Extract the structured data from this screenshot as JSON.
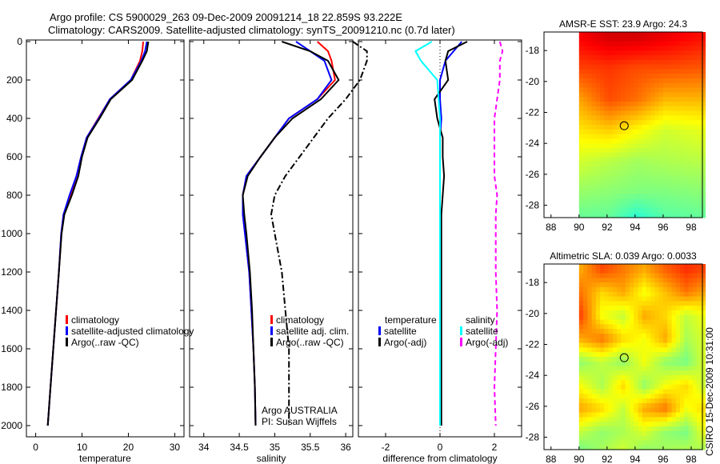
{
  "title": {
    "line1": "Argo profile: CS 5900029_263 09-Dec-2009 20091214_18 22.859S 93.222E",
    "line2": "Climatology: CARS2009. Satellite-adjusted climatology: synTS_20091210.nc (0.7d later)"
  },
  "credit": "CSIRO 15-Dec-2009 10:31:00",
  "colors": {
    "clim": "#ff0000",
    "sat": "#0000ff",
    "argo": "#000000",
    "salsat": "#00ffff",
    "salargo": "#ff00ff"
  },
  "chart_data": [
    {
      "type": "line",
      "name": "temperature",
      "xlabel": "temperature",
      "xlim": [
        -2,
        32
      ],
      "ylim": [
        2050,
        0
      ],
      "xticks": [
        "0",
        "10",
        "20",
        "30"
      ],
      "xtickvals": [
        0,
        10,
        20,
        30
      ],
      "yticks": [
        "0",
        "200",
        "400",
        "600",
        "800",
        "1000",
        "1200",
        "1400",
        "1600",
        "1800",
        "2000"
      ],
      "depth": [
        0,
        50,
        100,
        200,
        300,
        400,
        500,
        600,
        700,
        800,
        900,
        1000,
        1200,
        1400,
        1600,
        1800,
        2000
      ],
      "series": [
        {
          "name": "climatology",
          "color": "#ff0000",
          "values": [
            23.2,
            23.0,
            22.5,
            20.5,
            16.0,
            13.5,
            11.0,
            9.8,
            8.8,
            7.5,
            6.0,
            5.5,
            5.0,
            4.4,
            3.8,
            3.2,
            2.6
          ]
        },
        {
          "name": "satellite-adjusted climatology",
          "color": "#0000ff",
          "values": [
            24.0,
            23.6,
            22.8,
            20.5,
            16.0,
            13.6,
            11.0,
            9.8,
            8.8,
            7.3,
            6.0,
            5.5,
            5.0,
            4.4,
            3.8,
            3.2,
            2.6
          ]
        },
        {
          "name": "Argo(..raw -QC)",
          "color": "#000000",
          "values": [
            24.3,
            24.0,
            23.0,
            20.8,
            16.2,
            13.8,
            11.2,
            10.0,
            9.2,
            7.8,
            6.2,
            5.6,
            5.0,
            4.4,
            3.8,
            3.2,
            2.6
          ]
        }
      ],
      "legend": [
        "climatology",
        "satellite-adjusted climatology",
        "Argo(..raw -QC)"
      ]
    },
    {
      "type": "line",
      "name": "salinity",
      "xlabel": "salinity",
      "xlim": [
        33.8,
        36.1
      ],
      "ylim": [
        2050,
        0
      ],
      "xticks": [
        "34",
        "34.5",
        "35",
        "35.5",
        "36"
      ],
      "xtickvals": [
        34,
        34.5,
        35,
        35.5,
        36
      ],
      "depth": [
        0,
        50,
        100,
        200,
        300,
        400,
        500,
        600,
        700,
        800,
        900,
        1000,
        1200,
        1400,
        1600,
        1800,
        2000
      ],
      "series": [
        {
          "name": "climatology",
          "color": "#ff0000",
          "values": [
            35.6,
            35.75,
            35.8,
            35.85,
            35.6,
            35.2,
            35.0,
            34.8,
            34.6,
            34.55,
            34.55,
            34.58,
            34.64,
            34.67,
            34.7,
            34.72,
            34.73
          ]
        },
        {
          "name": "satellite adj. clim.",
          "color": "#0000ff",
          "values": [
            35.3,
            35.5,
            35.7,
            35.8,
            35.6,
            35.2,
            35.0,
            34.8,
            34.6,
            34.55,
            34.55,
            34.58,
            34.64,
            34.67,
            34.7,
            34.72,
            34.73
          ]
        },
        {
          "name": "Argo(..raw -QC)",
          "color": "#000000",
          "values": [
            35.1,
            35.5,
            35.75,
            35.9,
            35.65,
            35.25,
            35.0,
            34.8,
            34.62,
            34.55,
            34.57,
            34.6,
            34.65,
            34.68,
            34.7,
            34.72,
            34.73
          ]
        },
        {
          "name": "Argo raw",
          "color": "#000000",
          "dash": true,
          "values": [
            36.1,
            36.3,
            36.3,
            36.2,
            36.0,
            35.75,
            35.55,
            35.35,
            35.15,
            35.0,
            34.95,
            35.0,
            35.1,
            35.15,
            35.2,
            35.2,
            35.2
          ]
        }
      ],
      "legend": [
        "climatology",
        "satellite adj. clim.",
        "Argo(..raw -QC)"
      ],
      "annotation": [
        "Argo AUSTRALIA",
        "PI: Susan Wijffels"
      ]
    },
    {
      "type": "line",
      "name": "difference",
      "xlabel": "difference from climatology",
      "xlim": [
        -3,
        3
      ],
      "ylim": [
        2050,
        0
      ],
      "xticks": [
        "-2",
        "0",
        "2"
      ],
      "xtickvals": [
        -2,
        0,
        2
      ],
      "depth": [
        0,
        50,
        100,
        200,
        300,
        400,
        500,
        600,
        700,
        800,
        900,
        1000,
        1200,
        1400,
        1600,
        1800,
        2000
      ],
      "series": [
        {
          "name": "temperature satellite",
          "color": "#0000ff",
          "values": [
            0.8,
            0.5,
            0.2,
            0.0,
            0.0,
            0.05,
            0.0,
            0.0,
            0.0,
            0.0,
            0.0,
            0.0,
            0.0,
            0.0,
            0.0,
            0.0,
            0.0
          ]
        },
        {
          "name": "temperature Argo(-adj)",
          "color": "#000000",
          "values": [
            1.0,
            0.3,
            0.2,
            0.3,
            -0.2,
            -0.1,
            0.1,
            0.1,
            0.15,
            0.1,
            0.05,
            0.05,
            0.05,
            0.05,
            0.05,
            0.05,
            0.05
          ]
        },
        {
          "name": "salinity satellite",
          "color": "#00ffff",
          "values": [
            -0.3,
            -0.9,
            -0.7,
            -0.1,
            -0.05,
            0.0,
            0.0,
            0.0,
            0.0,
            0.0,
            0.0,
            0.0,
            0.0,
            0.0,
            0.0,
            0.0,
            0.0
          ]
        },
        {
          "name": "salinity Argo(-adj)",
          "color": "#ff00ff",
          "dash": true,
          "values": [
            2.2,
            2.3,
            2.2,
            2.2,
            2.1,
            2.0,
            2.0,
            2.0,
            2.0,
            2.1,
            2.05,
            2.05,
            2.05,
            2.1,
            2.05,
            2.0,
            2.05
          ]
        }
      ],
      "legend_headers": [
        "temperature",
        "salinity"
      ],
      "legend": [
        "satellite",
        "Argo(-adj)",
        "satellite",
        "Argo(-adj)"
      ]
    },
    {
      "type": "heatmap",
      "name": "sst-map",
      "title": "AMSR-E SST: 23.9 Argo: 24.3",
      "xlim": [
        87.5,
        98.8
      ],
      "ylim": [
        -28.8,
        -16.8
      ],
      "xticks": [
        "88",
        "90",
        "92",
        "94",
        "96",
        "98"
      ],
      "xtickvals": [
        88,
        90,
        92,
        94,
        96,
        98
      ],
      "yticks": [
        "-18",
        "-20",
        "-22",
        "-24",
        "-26",
        "-28"
      ],
      "ytickvals": [
        -18,
        -20,
        -22,
        -24,
        -26,
        -28
      ],
      "data_lon_start": 90,
      "profile": [
        93.222,
        -22.859
      ],
      "grid_lat": [
        -17,
        -19,
        -21,
        -23,
        -25,
        -27,
        -29
      ],
      "grid_lon": [
        90,
        92,
        94,
        96,
        98.8
      ],
      "values": [
        [
          25.6,
          25.9,
          25.9,
          25.7,
          25.4
        ],
        [
          25.0,
          25.1,
          24.9,
          24.9,
          24.8
        ],
        [
          24.2,
          24.9,
          24.6,
          24.0,
          24.0
        ],
        [
          23.6,
          23.8,
          23.4,
          23.0,
          23.2
        ],
        [
          23.0,
          22.8,
          22.6,
          22.7,
          22.8
        ],
        [
          22.5,
          22.4,
          22.3,
          22.3,
          22.4
        ],
        [
          22.0,
          22.0,
          21.4,
          21.9,
          22.0
        ]
      ],
      "vmin": 21.0,
      "vmax": 26.2
    },
    {
      "type": "heatmap",
      "name": "sla-map",
      "title": "Altimetric SLA: 0.039 Argo: 0.0033",
      "xlim": [
        87.5,
        98.8
      ],
      "ylim": [
        -28.8,
        -16.8
      ],
      "xticks": [
        "88",
        "90",
        "92",
        "94",
        "96",
        "98"
      ],
      "xtickvals": [
        88,
        90,
        92,
        94,
        96,
        98
      ],
      "yticks": [
        "-18",
        "-20",
        "-22",
        "-24",
        "-26",
        "-28"
      ],
      "ytickvals": [
        -18,
        -20,
        -22,
        -24,
        -26,
        -28
      ],
      "data_lon_start": 90,
      "profile": [
        93.222,
        -22.859
      ],
      "grid_lat": [
        -17,
        -18.5,
        -20,
        -21.5,
        -23,
        -24.5,
        -26,
        -27.5,
        -29
      ],
      "grid_lon": [
        90,
        91.5,
        93,
        94.5,
        96,
        97.5,
        98.8
      ],
      "values": [
        [
          0.1,
          0.14,
          0.12,
          0.1,
          0.13,
          0.15,
          0.14
        ],
        [
          0.12,
          0.08,
          0.1,
          0.06,
          0.09,
          0.12,
          0.1
        ],
        [
          0.14,
          0.06,
          0.04,
          0.1,
          0.08,
          0.04,
          0.06
        ],
        [
          0.1,
          0.12,
          0.08,
          0.06,
          0.1,
          0.03,
          0.05
        ],
        [
          0.02,
          0.04,
          0.02,
          0.06,
          0.02,
          0.01,
          0.05
        ],
        [
          0.06,
          0.03,
          0.08,
          0.02,
          0.06,
          0.08,
          0.04
        ],
        [
          0.1,
          0.08,
          0.04,
          0.1,
          0.12,
          0.06,
          0.08
        ],
        [
          0.04,
          0.02,
          0.03,
          0.05,
          0.02,
          0.01,
          0.06
        ],
        [
          0.0,
          0.03,
          0.05,
          0.01,
          0.03,
          0.04,
          0.02
        ]
      ],
      "vmin": -0.05,
      "vmax": 0.2
    }
  ]
}
